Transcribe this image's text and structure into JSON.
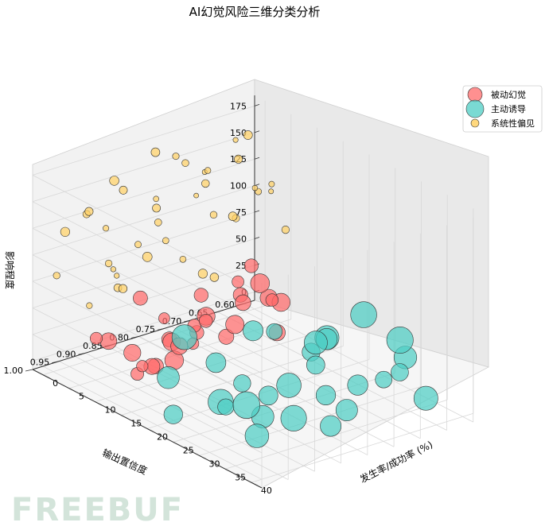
{
  "chart_data": {
    "type": "scatter",
    "title": "AI幻觉风险三维分类分析",
    "xlabel": "发生率/成功率 (%)",
    "ylabel": "输出置信度",
    "zlabel": "影响程度",
    "xlim": [
      -2,
      42
    ],
    "ylim": [
      0.58,
      1.0
    ],
    "zlim": [
      -8,
      185
    ],
    "x_ticks": [
      "0",
      "5",
      "10",
      "15",
      "20",
      "25",
      "30",
      "35",
      "40"
    ],
    "y_ticks": [
      "0.60",
      "0.65",
      "0.70",
      "0.75",
      "0.80",
      "0.85",
      "0.90",
      "0.95",
      "1.00"
    ],
    "z_ticks": [
      "0",
      "25",
      "50",
      "75",
      "100",
      "125",
      "150",
      "175"
    ],
    "grid": true,
    "legend_position": "top-right",
    "series": [
      {
        "name": "被动幻觉",
        "color": "#ff6b6b",
        "points": [
          {
            "x": 5.0,
            "y": 0.82,
            "z": 30
          },
          {
            "x": 6.0,
            "y": 0.76,
            "z": 45
          },
          {
            "x": 7.0,
            "y": 0.9,
            "z": 15
          },
          {
            "x": 8.0,
            "y": 0.71,
            "z": 55
          },
          {
            "x": 9.0,
            "y": 0.85,
            "z": 25
          },
          {
            "x": 10.0,
            "y": 0.79,
            "z": 40
          },
          {
            "x": 11.0,
            "y": 0.93,
            "z": 10
          },
          {
            "x": 12.0,
            "y": 0.74,
            "z": 50
          },
          {
            "x": 13.0,
            "y": 0.88,
            "z": 20
          },
          {
            "x": 6.5,
            "y": 0.67,
            "z": 60
          },
          {
            "x": 7.5,
            "y": 0.95,
            "z": 35
          },
          {
            "x": 8.5,
            "y": 0.8,
            "z": 12
          },
          {
            "x": 9.5,
            "y": 0.72,
            "z": 48
          },
          {
            "x": 10.5,
            "y": 0.86,
            "z": 28
          },
          {
            "x": 11.5,
            "y": 0.68,
            "z": 42
          },
          {
            "x": 12.5,
            "y": 0.91,
            "z": 18
          },
          {
            "x": 13.5,
            "y": 0.77,
            "z": 38
          },
          {
            "x": 14.0,
            "y": 0.83,
            "z": 52
          },
          {
            "x": 14.5,
            "y": 0.7,
            "z": 22
          },
          {
            "x": 15.0,
            "y": 0.96,
            "z": 32
          },
          {
            "x": 5.5,
            "y": 0.87,
            "z": 58
          },
          {
            "x": 6.8,
            "y": 0.64,
            "z": 26
          },
          {
            "x": 8.2,
            "y": 0.98,
            "z": 44
          },
          {
            "x": 9.8,
            "y": 0.75,
            "z": 14
          },
          {
            "x": 11.2,
            "y": 0.66,
            "z": 36
          },
          {
            "x": 12.8,
            "y": 0.84,
            "z": 46
          },
          {
            "x": 13.8,
            "y": 0.93,
            "z": 24
          },
          {
            "x": 10.2,
            "y": 0.69,
            "z": 56
          },
          {
            "x": 7.2,
            "y": 0.78,
            "z": 16
          },
          {
            "x": 15.0,
            "y": 0.89,
            "z": 40
          }
        ]
      },
      {
        "name": "主动诱导",
        "color": "#4ecdc4",
        "points": [
          {
            "x": 16,
            "y": 0.72,
            "z": 30
          },
          {
            "x": 18,
            "y": 0.78,
            "z": 45
          },
          {
            "x": 20,
            "y": 0.66,
            "z": 25
          },
          {
            "x": 22,
            "y": 0.84,
            "z": 15
          },
          {
            "x": 24,
            "y": 0.7,
            "z": 40
          },
          {
            "x": 26,
            "y": 0.92,
            "z": 20
          },
          {
            "x": 28,
            "y": 0.76,
            "z": 35
          },
          {
            "x": 30,
            "y": 0.88,
            "z": 10
          },
          {
            "x": 32,
            "y": 0.64,
            "z": 50
          },
          {
            "x": 34,
            "y": 0.8,
            "z": 28
          },
          {
            "x": 36,
            "y": 0.95,
            "z": 18
          },
          {
            "x": 38,
            "y": 0.73,
            "z": 42
          },
          {
            "x": 40,
            "y": 0.85,
            "z": 22
          },
          {
            "x": 17,
            "y": 0.9,
            "z": 55
          },
          {
            "x": 19,
            "y": 0.68,
            "z": 12
          },
          {
            "x": 21,
            "y": 0.97,
            "z": 38
          },
          {
            "x": 23,
            "y": 0.62,
            "z": 48
          },
          {
            "x": 25,
            "y": 0.82,
            "z": 8
          },
          {
            "x": 27,
            "y": 0.75,
            "z": 52
          },
          {
            "x": 29,
            "y": 0.94,
            "z": 26
          },
          {
            "x": 31,
            "y": 0.71,
            "z": 16
          },
          {
            "x": 33,
            "y": 0.86,
            "z": 44
          },
          {
            "x": 35,
            "y": 0.67,
            "z": 32
          },
          {
            "x": 37,
            "y": 0.79,
            "z": 20
          },
          {
            "x": 39,
            "y": 0.91,
            "z": 36
          },
          {
            "x": 24,
            "y": 0.99,
            "z": 14
          },
          {
            "x": 30,
            "y": 0.61,
            "z": 24
          },
          {
            "x": 35,
            "y": 0.96,
            "z": 46
          },
          {
            "x": 20,
            "y": 0.87,
            "z": 34
          },
          {
            "x": 38,
            "y": 0.65,
            "z": 12
          }
        ]
      },
      {
        "name": "系统性偏见",
        "color": "#ffd166",
        "points": [
          {
            "x": 1.0,
            "y": 0.72,
            "z": 120
          },
          {
            "x": 2.0,
            "y": 0.84,
            "z": 95
          },
          {
            "x": 3.0,
            "y": 0.66,
            "z": 150
          },
          {
            "x": 4.0,
            "y": 0.9,
            "z": 80
          },
          {
            "x": 5.0,
            "y": 0.78,
            "z": 170
          },
          {
            "x": 6.0,
            "y": 0.7,
            "z": 110
          },
          {
            "x": 7.0,
            "y": 0.95,
            "z": 140
          },
          {
            "x": 8.0,
            "y": 0.62,
            "z": 90
          },
          {
            "x": 1.5,
            "y": 0.88,
            "z": 160
          },
          {
            "x": 2.5,
            "y": 0.76,
            "z": 70
          },
          {
            "x": 3.5,
            "y": 0.82,
            "z": 130
          },
          {
            "x": 4.5,
            "y": 0.68,
            "z": 175
          },
          {
            "x": 5.5,
            "y": 0.93,
            "z": 100
          },
          {
            "x": 6.5,
            "y": 0.74,
            "z": 60
          },
          {
            "x": 7.5,
            "y": 0.86,
            "z": 155
          },
          {
            "x": 0.5,
            "y": 0.64,
            "z": 85
          },
          {
            "x": 1.2,
            "y": 0.97,
            "z": 125
          },
          {
            "x": 2.2,
            "y": 0.71,
            "z": 145
          },
          {
            "x": 3.2,
            "y": 0.89,
            "z": 65
          },
          {
            "x": 4.2,
            "y": 0.61,
            "z": 115
          },
          {
            "x": 5.2,
            "y": 0.8,
            "z": 180
          },
          {
            "x": 6.2,
            "y": 0.91,
            "z": 75
          },
          {
            "x": 7.2,
            "y": 0.67,
            "z": 135
          },
          {
            "x": 0.8,
            "y": 0.79,
            "z": 105
          },
          {
            "x": 1.8,
            "y": 0.63,
            "z": 165
          },
          {
            "x": 2.8,
            "y": 0.94,
            "z": 55
          },
          {
            "x": 3.8,
            "y": 0.73,
            "z": 140
          },
          {
            "x": 4.8,
            "y": 0.85,
            "z": 92
          },
          {
            "x": 5.8,
            "y": 0.65,
            "z": 125
          },
          {
            "x": 6.8,
            "y": 0.98,
            "z": 160
          },
          {
            "x": 0.3,
            "y": 0.87,
            "z": 72
          },
          {
            "x": 1.3,
            "y": 0.69,
            "z": 98
          },
          {
            "x": 2.3,
            "y": 0.81,
            "z": 178
          },
          {
            "x": 3.3,
            "y": 0.6,
            "z": 118
          },
          {
            "x": 4.3,
            "y": 0.96,
            "z": 148
          },
          {
            "x": 5.3,
            "y": 0.75,
            "z": 62
          },
          {
            "x": 6.3,
            "y": 0.83,
            "z": 108
          },
          {
            "x": 7.3,
            "y": 0.92,
            "z": 172
          },
          {
            "x": 0.6,
            "y": 0.7,
            "z": 138
          },
          {
            "x": 1.6,
            "y": 0.99,
            "z": 88
          }
        ]
      }
    ]
  },
  "watermark": "FREEBUF"
}
